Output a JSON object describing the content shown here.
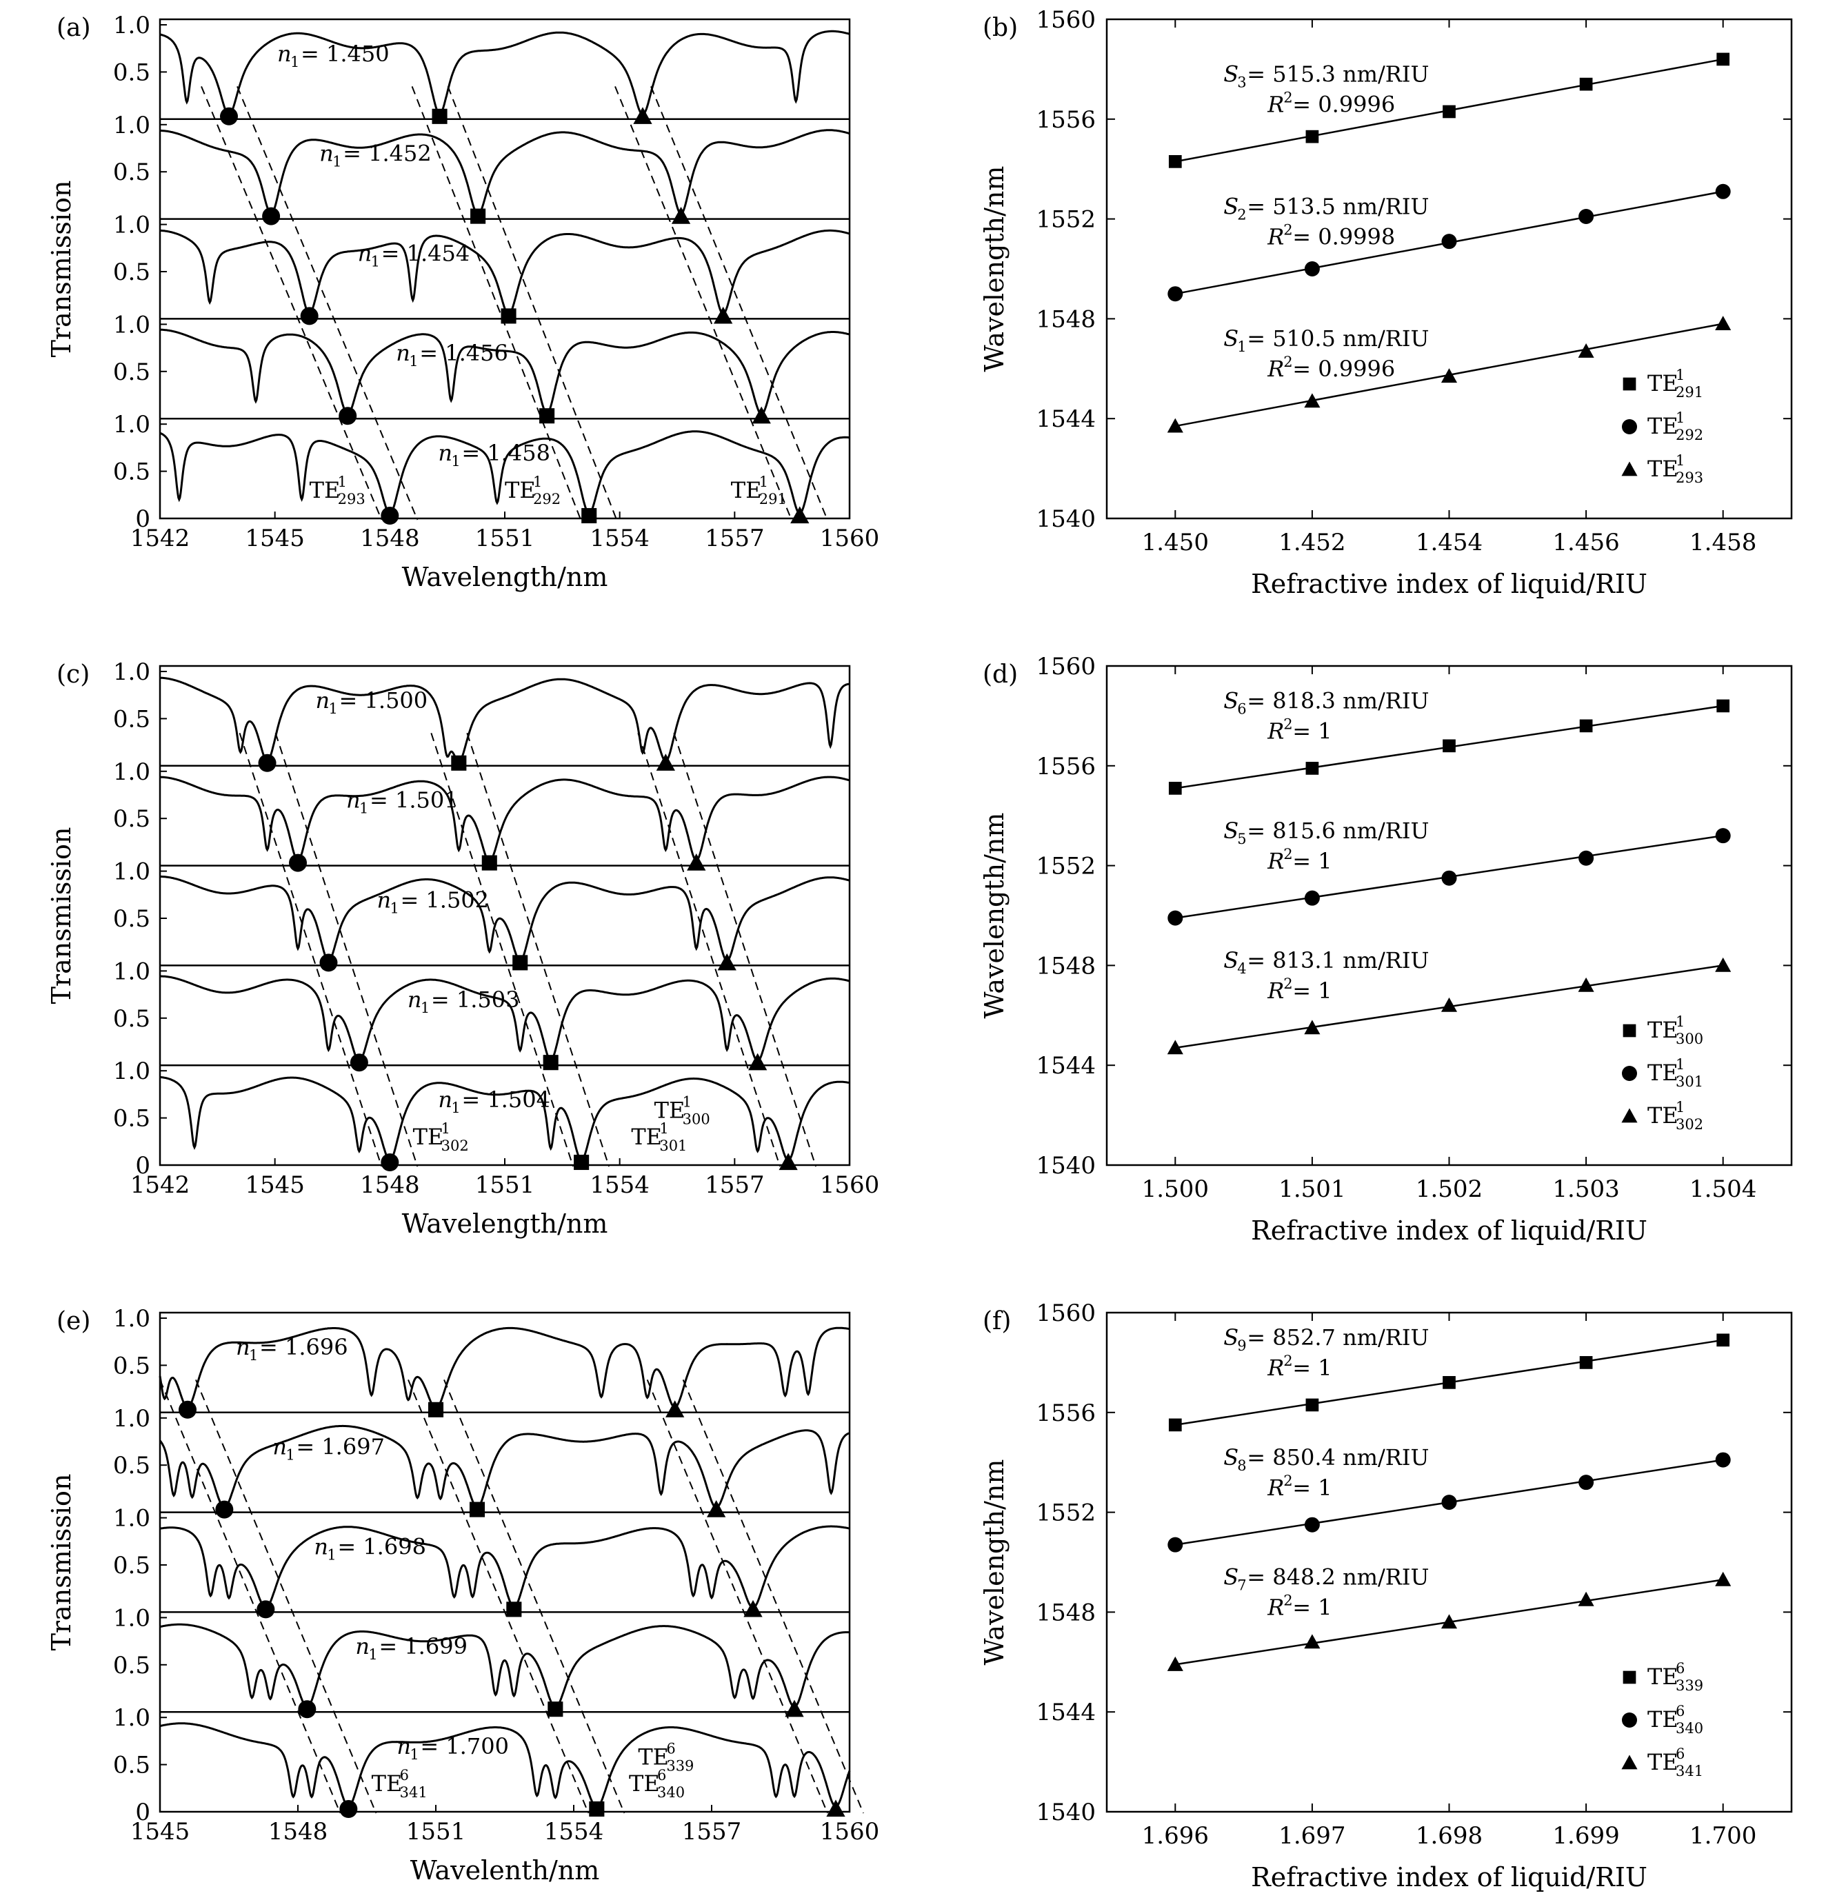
{
  "chart_data": [
    {
      "panel": "(a)",
      "type": "line",
      "xlabel": "Wavelength/nm",
      "ylabel": "Transmission",
      "xlim": [
        1542,
        1560
      ],
      "xticks": [
        "1542",
        "1545",
        "1548",
        "1551",
        "1554",
        "1557",
        "1560"
      ],
      "yticks_top": [
        "0.5",
        "1.0"
      ],
      "yticks_bottom": [
        "0",
        "0.5",
        "1.0"
      ],
      "stack_index_labels": [
        "n1 = 1.450",
        "n1 = 1.452",
        "n1 = 1.454",
        "n1 = 1.456",
        "n1 = 1.458"
      ],
      "series": [
        {
          "name": "n1 = 1.450",
          "label": "1.450",
          "dips": [
            1543.8,
            1549.3,
            1554.6
          ],
          "markers": {
            "circle": 1543.8,
            "square": 1549.3,
            "triangle": 1554.6
          },
          "secondary_dips": [
            1542.7,
            1558.6
          ]
        },
        {
          "name": "n1 = 1.452",
          "label": "1.452",
          "dips": [
            1544.9,
            1550.3,
            1555.6
          ],
          "markers": {
            "circle": 1544.9,
            "square": 1550.3,
            "triangle": 1555.6
          },
          "secondary_dips": []
        },
        {
          "name": "n1 = 1.454",
          "label": "1.454",
          "dips": [
            1545.9,
            1551.1,
            1556.7
          ],
          "markers": {
            "circle": 1545.9,
            "square": 1551.1,
            "triangle": 1556.7
          },
          "secondary_dips": [
            1543.3,
            1548.6
          ]
        },
        {
          "name": "n1 = 1.456",
          "label": "1.456",
          "dips": [
            1546.9,
            1552.1,
            1557.7
          ],
          "markers": {
            "circle": 1546.9,
            "square": 1552.1,
            "triangle": 1557.7
          },
          "secondary_dips": [
            1544.5,
            1549.6
          ]
        },
        {
          "name": "n1 = 1.458",
          "label": "1.458",
          "dips": [
            1548.0,
            1553.2,
            1558.7
          ],
          "markers": {
            "circle": 1548.0,
            "square": 1553.2,
            "triangle": 1558.7
          },
          "secondary_dips": [
            1542.5,
            1545.7,
            1550.8
          ]
        }
      ],
      "mode_labels": [
        {
          "text": "TE",
          "sup": "1",
          "sub": "293",
          "x": 1545.9,
          "y": 0.22
        },
        {
          "text": "TE",
          "sup": "1",
          "sub": "292",
          "x": 1551.0,
          "y": 0.22
        },
        {
          "text": "TE",
          "sup": "1",
          "sub": "291",
          "x": 1556.9,
          "y": 0.22
        }
      ]
    },
    {
      "panel": "(b)",
      "type": "scatter",
      "xlabel": "Refractive index of liquid/RIU",
      "ylabel": "Wavelength/nm",
      "xlim": [
        1.449,
        1.459
      ],
      "ylim": [
        1540,
        1560
      ],
      "xticks": [
        "1.450",
        "1.452",
        "1.454",
        "1.456",
        "1.458"
      ],
      "yticks": [
        "1540",
        "1544",
        "1548",
        "1552",
        "1556",
        "1560"
      ],
      "x": [
        1.45,
        1.452,
        1.454,
        1.456,
        1.458
      ],
      "series": [
        {
          "name": "TE1 291",
          "marker": "square",
          "label": {
            "text": "TE",
            "sup": "1",
            "sub": "291"
          },
          "values": [
            1554.3,
            1555.3,
            1556.3,
            1557.4,
            1558.4
          ],
          "fit": [
            1554.3,
            1558.4
          ],
          "S": "S",
          "Ssub": "3",
          "slope": " = 515.3 nm/RIU",
          "r2": " = 0.9996"
        },
        {
          "name": "TE1 292",
          "marker": "circle",
          "label": {
            "text": "TE",
            "sup": "1",
            "sub": "292"
          },
          "values": [
            1549.0,
            1550.0,
            1551.1,
            1552.1,
            1553.1
          ],
          "fit": [
            1549.0,
            1553.1
          ],
          "S": "S",
          "Ssub": "2",
          "slope": " = 513.5 nm/RIU",
          "r2": " = 0.9998"
        },
        {
          "name": "TE1 293",
          "marker": "triangle",
          "label": {
            "text": "TE",
            "sup": "1",
            "sub": "293"
          },
          "values": [
            1543.7,
            1544.7,
            1545.7,
            1546.7,
            1547.8
          ],
          "fit": [
            1543.7,
            1547.8
          ],
          "S": "S",
          "Ssub": "1",
          "slope": " = 510.5 nm/RIU",
          "r2": " = 0.9996"
        }
      ],
      "legend_position": "bottom-right"
    },
    {
      "panel": "(c)",
      "type": "line",
      "xlabel": "Wavelength/nm",
      "ylabel": "Transmission",
      "xlim": [
        1542,
        1560
      ],
      "xticks": [
        "1542",
        "1545",
        "1548",
        "1551",
        "1554",
        "1557",
        "1560"
      ],
      "yticks_top": [
        "0.5",
        "1.0"
      ],
      "yticks_bottom": [
        "0",
        "0.5",
        "1.0"
      ],
      "stack_index_labels": [
        "n1 = 1.500",
        "n1 = 1.501",
        "n1 = 1.502",
        "n1 = 1.503",
        "n1 = 1.504"
      ],
      "series": [
        {
          "name": "n1 = 1.500",
          "label": "1.500",
          "dips": [
            1544.8,
            1549.8,
            1555.2
          ],
          "markers": {
            "circle": 1544.8,
            "square": 1549.8,
            "triangle": 1555.2
          },
          "secondary_dips": [
            1544.1,
            1549.5,
            1554.6,
            1559.5
          ]
        },
        {
          "name": "n1 = 1.501",
          "label": "1.501",
          "dips": [
            1545.6,
            1550.6,
            1556.0
          ],
          "markers": {
            "circle": 1545.6,
            "square": 1550.6,
            "triangle": 1556.0
          },
          "secondary_dips": [
            1544.8,
            1549.8,
            1555.2
          ]
        },
        {
          "name": "n1 = 1.502",
          "label": "1.502",
          "dips": [
            1546.4,
            1551.4,
            1556.8
          ],
          "markers": {
            "circle": 1546.4,
            "square": 1551.4,
            "triangle": 1556.8
          },
          "secondary_dips": [
            1545.6,
            1550.6,
            1556.0
          ]
        },
        {
          "name": "n1 = 1.503",
          "label": "1.503",
          "dips": [
            1547.2,
            1552.2,
            1557.6
          ],
          "markers": {
            "circle": 1547.2,
            "square": 1552.2,
            "triangle": 1557.6
          },
          "secondary_dips": [
            1546.4,
            1551.4,
            1556.8
          ]
        },
        {
          "name": "n1 = 1.504",
          "label": "1.504",
          "dips": [
            1548.0,
            1553.0,
            1558.4
          ],
          "markers": {
            "circle": 1548.0,
            "square": 1553.0,
            "triangle": 1558.4
          },
          "secondary_dips": [
            1542.9,
            1547.2,
            1552.2,
            1557.6
          ]
        }
      ],
      "mode_labels": [
        {
          "text": "TE",
          "sup": "1",
          "sub": "302",
          "x": 1548.6,
          "y": 0.22
        },
        {
          "text": "TE",
          "sup": "1",
          "sub": "301",
          "x": 1554.3,
          "y": 0.22
        },
        {
          "text": "TE",
          "sup": "1",
          "sub": "300",
          "x": 1554.9,
          "y": 0.5
        }
      ]
    },
    {
      "panel": "(d)",
      "type": "scatter",
      "xlabel": "Refractive index of liquid/RIU",
      "ylabel": "Wavelength/nm",
      "xlim": [
        1.4995,
        1.5045
      ],
      "ylim": [
        1540,
        1560
      ],
      "xticks": [
        "1.500",
        "1.501",
        "1.502",
        "1.503",
        "1.504"
      ],
      "yticks": [
        "1540",
        "1544",
        "1548",
        "1552",
        "1556",
        "1560"
      ],
      "x": [
        1.5,
        1.501,
        1.502,
        1.503,
        1.504
      ],
      "series": [
        {
          "name": "TE1 300",
          "marker": "square",
          "label": {
            "text": "TE",
            "sup": "1",
            "sub": "300"
          },
          "values": [
            1555.1,
            1555.9,
            1556.8,
            1557.6,
            1558.4
          ],
          "fit": [
            1555.1,
            1558.4
          ],
          "S": "S",
          "Ssub": "6",
          "slope": " = 818.3 nm/RIU",
          "r2": " = 1"
        },
        {
          "name": "TE1 301",
          "marker": "circle",
          "label": {
            "text": "TE",
            "sup": "1",
            "sub": "301"
          },
          "values": [
            1549.9,
            1550.7,
            1551.5,
            1552.3,
            1553.2
          ],
          "fit": [
            1549.9,
            1553.2
          ],
          "S": "S",
          "Ssub": "5",
          "slope": " = 815.6 nm/RIU",
          "r2": " = 1"
        },
        {
          "name": "TE1 302",
          "marker": "triangle",
          "label": {
            "text": "TE",
            "sup": "1",
            "sub": "302"
          },
          "values": [
            1544.7,
            1545.5,
            1546.4,
            1547.2,
            1548.0
          ],
          "fit": [
            1544.7,
            1548.0
          ],
          "S": "S",
          "Ssub": "4",
          "slope": " = 813.1 nm/RIU",
          "r2": " = 1"
        }
      ],
      "legend_position": "bottom-right"
    },
    {
      "panel": "(e)",
      "type": "line",
      "xlabel": "Wavelenth/nm",
      "ylabel": "Transmission",
      "xlim": [
        1545,
        1560
      ],
      "xticks": [
        "1545",
        "1548",
        "1551",
        "1554",
        "1557",
        "1560"
      ],
      "yticks_top": [
        "0.5",
        "1.0"
      ],
      "yticks_bottom": [
        "0",
        "0.5",
        "1.0"
      ],
      "stack_index_labels": [
        "n1 = 1.696",
        "n1 = 1.697",
        "n1 = 1.698",
        "n1 = 1.699",
        "n1 = 1.700"
      ],
      "series": [
        {
          "name": "n1 = 1.696",
          "label": "1.696",
          "dips": [
            1545.6,
            1551.0,
            1556.2
          ],
          "markers": {
            "circle": 1545.6,
            "square": 1551.0,
            "triangle": 1556.2
          },
          "secondary_dips": [
            1545.1,
            1550.4,
            1555.6,
            1559.1,
            1549.6,
            1554.6,
            1558.6
          ]
        },
        {
          "name": "n1 = 1.697",
          "label": "1.697",
          "dips": [
            1546.4,
            1551.9,
            1557.1
          ],
          "markers": {
            "circle": 1546.4,
            "square": 1551.9,
            "triangle": 1557.1
          },
          "secondary_dips": [
            1545.3,
            1545.7,
            1550.6,
            1551.1,
            1555.9,
            1559.6
          ]
        },
        {
          "name": "n1 = 1.698",
          "label": "1.698",
          "dips": [
            1547.3,
            1552.7,
            1557.9
          ],
          "markers": {
            "circle": 1547.3,
            "square": 1552.7,
            "triangle": 1557.9
          },
          "secondary_dips": [
            1546.1,
            1546.5,
            1551.4,
            1551.8,
            1556.6,
            1557.0
          ]
        },
        {
          "name": "n1 = 1.699",
          "label": "1.699",
          "dips": [
            1548.2,
            1553.6,
            1558.8
          ],
          "markers": {
            "circle": 1548.2,
            "square": 1553.6,
            "triangle": 1558.8
          },
          "secondary_dips": [
            1547.0,
            1547.4,
            1552.3,
            1552.7,
            1557.5,
            1557.9
          ]
        },
        {
          "name": "n1 = 1.700",
          "label": "1.700",
          "dips": [
            1549.1,
            1554.5,
            1559.7
          ],
          "markers": {
            "circle": 1549.1,
            "square": 1554.5,
            "triangle": 1559.7
          },
          "secondary_dips": [
            1547.9,
            1548.3,
            1553.2,
            1553.6,
            1558.4,
            1558.8
          ]
        }
      ],
      "mode_labels": [
        {
          "text": "TE",
          "sup": "6",
          "sub": "341",
          "x": 1549.6,
          "y": 0.22
        },
        {
          "text": "TE",
          "sup": "6",
          "sub": "340",
          "x": 1555.2,
          "y": 0.22
        },
        {
          "text": "TE",
          "sup": "6",
          "sub": "339",
          "x": 1555.4,
          "y": 0.5
        }
      ]
    },
    {
      "panel": "(f)",
      "type": "scatter",
      "xlabel": "Refractive index of liquid/RIU",
      "ylabel": "Wavelength/nm",
      "xlim": [
        1.6955,
        1.7005
      ],
      "ylim": [
        1540,
        1560
      ],
      "xticks": [
        "1.696",
        "1.697",
        "1.698",
        "1.699",
        "1.700"
      ],
      "yticks": [
        "1540",
        "1544",
        "1548",
        "1552",
        "1556",
        "1560"
      ],
      "x": [
        1.696,
        1.697,
        1.698,
        1.699,
        1.7
      ],
      "series": [
        {
          "name": "TE6 339",
          "marker": "square",
          "label": {
            "text": "TE",
            "sup": "6",
            "sub": "339"
          },
          "values": [
            1555.5,
            1556.3,
            1557.2,
            1558.0,
            1558.9
          ],
          "fit": [
            1555.5,
            1558.9
          ],
          "S": "S",
          "Ssub": "9",
          "slope": " = 852.7 nm/RIU",
          "r2": " = 1"
        },
        {
          "name": "TE6 340",
          "marker": "circle",
          "label": {
            "text": "TE",
            "sup": "6",
            "sub": "340"
          },
          "values": [
            1550.7,
            1551.5,
            1552.4,
            1553.2,
            1554.1
          ],
          "fit": [
            1550.7,
            1554.1
          ],
          "S": "S",
          "Ssub": "8",
          "slope": " = 850.4 nm/RIU",
          "r2": " = 1"
        },
        {
          "name": "TE6 341",
          "marker": "triangle",
          "label": {
            "text": "TE",
            "sup": "6",
            "sub": "341"
          },
          "values": [
            1545.9,
            1546.8,
            1547.6,
            1548.5,
            1549.3
          ],
          "fit": [
            1545.9,
            1549.3
          ],
          "S": "S",
          "Ssub": "7",
          "slope": " = 848.2 nm/RIU",
          "r2": " = 1"
        }
      ],
      "legend_position": "bottom-right"
    }
  ]
}
